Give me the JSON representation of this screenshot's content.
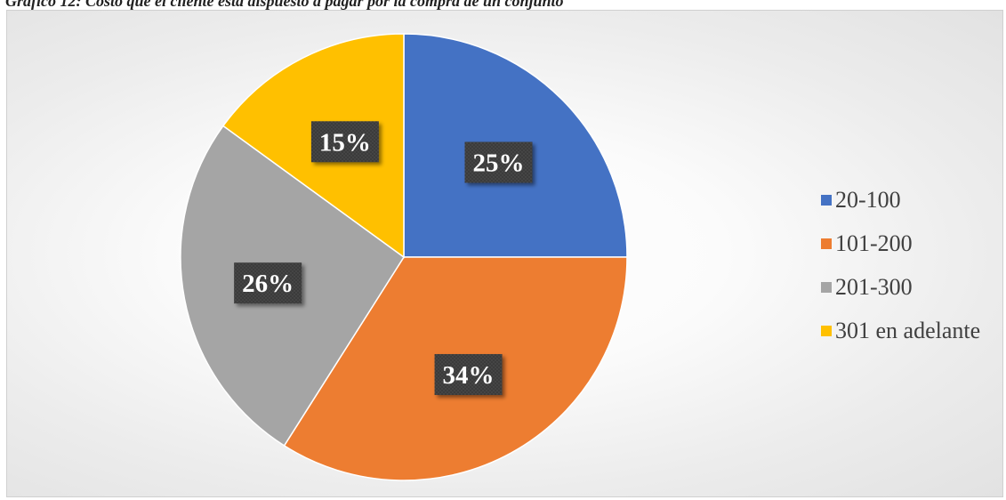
{
  "caption": "Gráfico 12: Costo que el cliente está dispuesto a pagar por la compra de un conjunto",
  "chart_data": {
    "type": "pie",
    "title": "",
    "categories": [
      "20-100",
      "101-200",
      "201-300",
      "301 en adelante"
    ],
    "values": [
      25,
      34,
      26,
      15
    ],
    "data_labels": [
      "25%",
      "34%",
      "26%",
      "15%"
    ],
    "colors": [
      "#4472C4",
      "#ED7D31",
      "#A5A5A5",
      "#FFC000"
    ],
    "legend_position": "right"
  }
}
